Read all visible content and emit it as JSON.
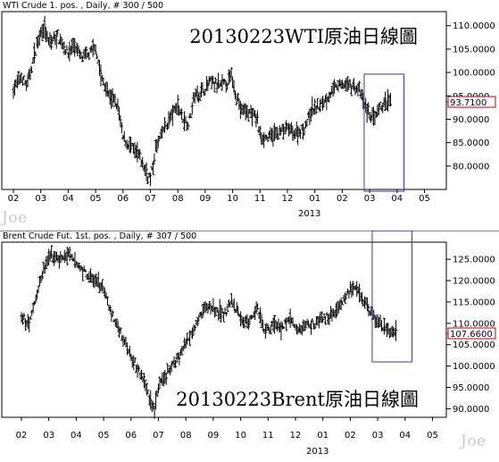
{
  "chart_data": [
    {
      "type": "ohlc",
      "header": "WTI Crude 1. pos. , Daily, # 300 / 500",
      "title": "20130223WTI原油日線圖",
      "xlabel": "",
      "ylabel": "",
      "ylim": [
        75,
        113
      ],
      "y_ticks": [
        "110.0000",
        "105.0000",
        "100.0000",
        "95.0000",
        "90.0000",
        "85.0000",
        "80.0000"
      ],
      "y_tick_values": [
        110,
        105,
        100,
        95,
        90,
        85,
        80
      ],
      "x_ticks": [
        "02",
        "03",
        "04",
        "05",
        "06",
        "07",
        "08",
        "09",
        "10",
        "11",
        "12",
        "01",
        "02",
        "03",
        "04",
        "05"
      ],
      "x_tick_positions": [
        0,
        1,
        2,
        3,
        4,
        5,
        6,
        7,
        8,
        9,
        10,
        11,
        12,
        13,
        14,
        15
      ],
      "year_label": "2013",
      "year_position": 11,
      "last_price_label": "93.7100",
      "last_price": 93.71,
      "anchors": [
        [
          0,
          96.5
        ],
        [
          0.3,
          99
        ],
        [
          0.5,
          97
        ],
        [
          0.9,
          107
        ],
        [
          1.1,
          110
        ],
        [
          1.3,
          106
        ],
        [
          1.6,
          108
        ],
        [
          2.0,
          104
        ],
        [
          2.2,
          106
        ],
        [
          2.5,
          103
        ],
        [
          2.8,
          104
        ],
        [
          3.0,
          105.5
        ],
        [
          3.2,
          99
        ],
        [
          3.5,
          95
        ],
        [
          3.8,
          93
        ],
        [
          4.0,
          86
        ],
        [
          4.3,
          84
        ],
        [
          4.6,
          82
        ],
        [
          4.9,
          78
        ],
        [
          5.0,
          77.5
        ],
        [
          5.1,
          80
        ],
        [
          5.2,
          84
        ],
        [
          5.5,
          88
        ],
        [
          5.8,
          91
        ],
        [
          6.0,
          93
        ],
        [
          6.2,
          90
        ],
        [
          6.4,
          89
        ],
        [
          6.6,
          95
        ],
        [
          6.9,
          96
        ],
        [
          7.2,
          98
        ],
        [
          7.5,
          97
        ],
        [
          7.7,
          97.5
        ],
        [
          7.85,
          98
        ],
        [
          7.95,
          99.5
        ],
        [
          8.1,
          96
        ],
        [
          8.3,
          92
        ],
        [
          8.6,
          91.5
        ],
        [
          8.9,
          90
        ],
        [
          9.0,
          86.5
        ],
        [
          9.3,
          86
        ],
        [
          9.6,
          87
        ],
        [
          10.0,
          88
        ],
        [
          10.3,
          87
        ],
        [
          10.6,
          88
        ],
        [
          10.9,
          92
        ],
        [
          11.2,
          93
        ],
        [
          11.5,
          95
        ],
        [
          11.8,
          97
        ],
        [
          12.1,
          97.5
        ],
        [
          12.4,
          97
        ],
        [
          12.65,
          96
        ],
        [
          12.8,
          93
        ],
        [
          13.0,
          91
        ],
        [
          13.2,
          90
        ],
        [
          13.4,
          92.5
        ],
        [
          13.6,
          93.5
        ],
        [
          13.8,
          93.71
        ]
      ],
      "highlight_box_x": [
        12.8,
        14.25
      ],
      "highlight_box_y": [
        100,
        75
      ]
    },
    {
      "type": "ohlc",
      "header": "Brent Crude Fut. 1st. pos. , Daily, # 307 / 500",
      "title": "20130223Brent原油日線圖",
      "xlabel": "",
      "ylabel": "",
      "ylim": [
        88,
        129
      ],
      "y_ticks": [
        "125.0000",
        "120.0000",
        "115.0000",
        "110.0000",
        "105.0000",
        "100.0000",
        "95.0000",
        "90.0000"
      ],
      "y_tick_values": [
        125,
        120,
        115,
        110,
        105,
        100,
        95,
        90
      ],
      "x_ticks": [
        "02",
        "03",
        "04",
        "05",
        "06",
        "07",
        "08",
        "09",
        "10",
        "11",
        "12",
        "01",
        "02",
        "03",
        "04",
        "05"
      ],
      "x_tick_positions": [
        0,
        1,
        2,
        3,
        4,
        5,
        6,
        7,
        8,
        9,
        10,
        11,
        12,
        13,
        14,
        15
      ],
      "year_label": "2013",
      "year_position": 11,
      "last_price_label": "107.6600",
      "last_price": 107.66,
      "anchors": [
        [
          0,
          111
        ],
        [
          0.3,
          110
        ],
        [
          0.6,
          118
        ],
        [
          0.9,
          124
        ],
        [
          1.1,
          126
        ],
        [
          1.4,
          125
        ],
        [
          1.7,
          126
        ],
        [
          2.0,
          124
        ],
        [
          2.3,
          122
        ],
        [
          2.6,
          120
        ],
        [
          2.9,
          119
        ],
        [
          3.1,
          116
        ],
        [
          3.3,
          112
        ],
        [
          3.6,
          108
        ],
        [
          3.9,
          104
        ],
        [
          4.2,
          100
        ],
        [
          4.5,
          96
        ],
        [
          4.7,
          92
        ],
        [
          4.85,
          90
        ],
        [
          5.0,
          95
        ],
        [
          5.3,
          98
        ],
        [
          5.6,
          101
        ],
        [
          5.9,
          104
        ],
        [
          6.2,
          108
        ],
        [
          6.5,
          112
        ],
        [
          6.8,
          114
        ],
        [
          7.1,
          113
        ],
        [
          7.4,
          112
        ],
        [
          7.7,
          115
        ],
        [
          8.0,
          111
        ],
        [
          8.3,
          110
        ],
        [
          8.6,
          114
        ],
        [
          8.9,
          108
        ],
        [
          9.2,
          110
        ],
        [
          9.5,
          109
        ],
        [
          9.8,
          111
        ],
        [
          10.1,
          108
        ],
        [
          10.4,
          110
        ],
        [
          10.7,
          110
        ],
        [
          11.0,
          111
        ],
        [
          11.3,
          112
        ],
        [
          11.6,
          114
        ],
        [
          11.9,
          117
        ],
        [
          12.1,
          118
        ],
        [
          12.35,
          117
        ],
        [
          12.6,
          114
        ],
        [
          12.9,
          111
        ],
        [
          13.2,
          109
        ],
        [
          13.5,
          108
        ],
        [
          13.7,
          107.66
        ]
      ],
      "highlight_box_x": [
        12.8,
        14.25
      ],
      "highlight_box_y": [
        129,
        101.5
      ]
    }
  ],
  "watermark": "Joe"
}
